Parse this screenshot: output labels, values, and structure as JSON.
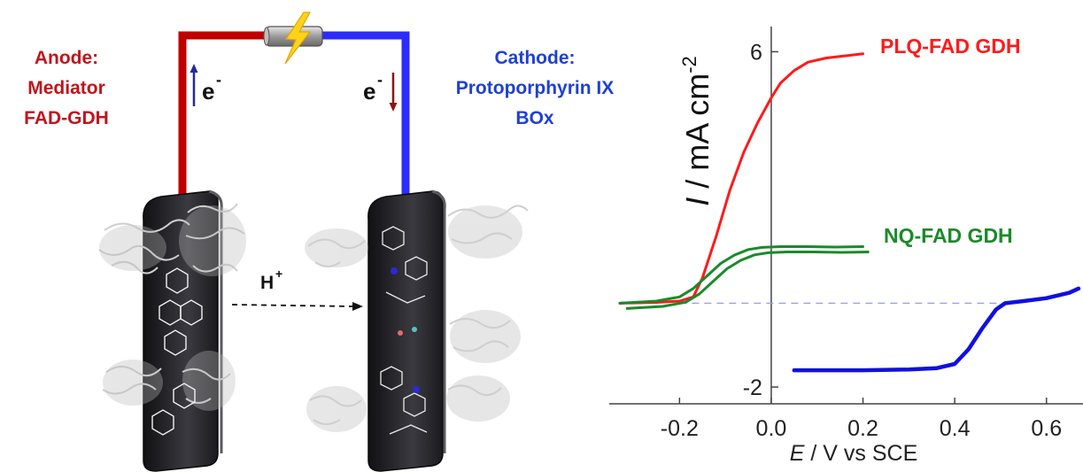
{
  "cell": {
    "anode_title": "Anode:",
    "anode_line2": "Mediator",
    "anode_line3": "FAD-GDH",
    "cathode_title": "Cathode:",
    "cathode_line2": "Protoporphyrin  IX",
    "cathode_line3": "BOx",
    "electron_label": "e",
    "electron_sup": "-",
    "proton_label": "H",
    "proton_sup": "+",
    "colors": {
      "anode": "#c0141c",
      "cathode": "#1f3fd6",
      "wire_left": "#c00000",
      "wire_right": "#2c2cff",
      "electrode": "#2a2a2e",
      "bolt": "#ffd21a"
    },
    "icons": [
      "lightning-bolt-icon",
      "electron-up-arrow-icon",
      "electron-down-arrow-icon"
    ]
  },
  "chart_data": {
    "type": "line",
    "xlabel_italic": "E",
    "xlabel_rest": " / V vs SCE",
    "ylabel_italic": "I",
    "ylabel_rest": " / mA cm",
    "ylabel_sup": "-2",
    "xlim": [
      -0.33,
      0.67
    ],
    "ylim": [
      -2.4,
      6.6
    ],
    "x_ticks": [
      -0.2,
      0.0,
      0.2,
      0.4,
      0.6
    ],
    "x_tick_labels": [
      "-0.2",
      "0.0",
      "0.2",
      "0.4",
      "0.6"
    ],
    "y_ticks": [
      -2,
      6
    ],
    "y_tick_labels": [
      "-2",
      "6"
    ],
    "series": [
      {
        "name": "PLQ-FAD GDH",
        "color": "#ff1a1a",
        "x": [
          -0.33,
          -0.25,
          -0.2,
          -0.17,
          -0.15,
          -0.12,
          -0.09,
          -0.06,
          -0.03,
          0.0,
          0.02,
          0.05,
          0.08,
          0.12,
          0.16,
          0.2
        ],
        "y": [
          0.0,
          0.02,
          0.05,
          0.15,
          0.6,
          1.6,
          2.7,
          3.6,
          4.3,
          4.9,
          5.25,
          5.55,
          5.75,
          5.85,
          5.9,
          5.95
        ]
      },
      {
        "name": "NQ-FAD GDH",
        "color": "#1a8a2a",
        "x": [
          -0.33,
          -0.25,
          -0.2,
          -0.17,
          -0.14,
          -0.11,
          -0.08,
          -0.05,
          -0.02,
          0.02,
          0.08,
          0.14,
          0.2
        ],
        "y": [
          0.0,
          0.05,
          0.15,
          0.35,
          0.65,
          0.95,
          1.15,
          1.28,
          1.33,
          1.35,
          1.35,
          1.34,
          1.35
        ]
      },
      {
        "name": "",
        "color": "#1010e0",
        "x": [
          0.05,
          0.1,
          0.2,
          0.3,
          0.36,
          0.4,
          0.43,
          0.46,
          0.49,
          0.51,
          0.55,
          0.6,
          0.65,
          0.67
        ],
        "y": [
          -1.6,
          -1.6,
          -1.6,
          -1.58,
          -1.55,
          -1.45,
          -1.1,
          -0.6,
          -0.15,
          0.0,
          0.05,
          0.12,
          0.25,
          0.35
        ]
      }
    ]
  }
}
